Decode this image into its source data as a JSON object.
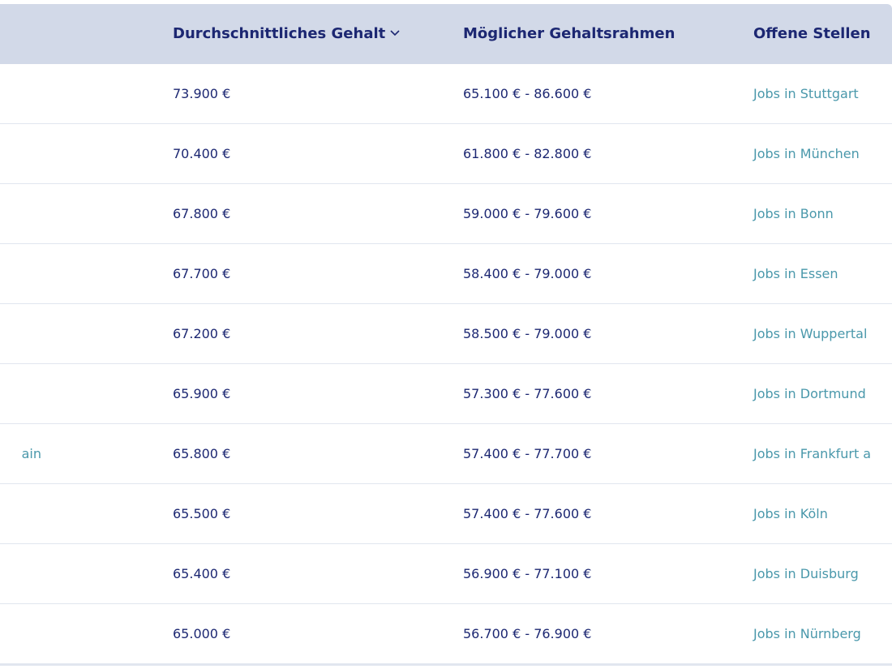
{
  "header": {
    "avg_salary_label": "Durchschnittliches Gehalt",
    "range_label": "Möglicher Gehaltsrahmen",
    "jobs_label": "Offene Stellen"
  },
  "rows": [
    {
      "city": "",
      "avg": "73.900 €",
      "range": "65.100 € - 86.600 €",
      "jobs": "Jobs in Stuttgart"
    },
    {
      "city": "",
      "avg": "70.400 €",
      "range": "61.800 € - 82.800 €",
      "jobs": "Jobs in München"
    },
    {
      "city": "",
      "avg": "67.800 €",
      "range": "59.000 € - 79.600 €",
      "jobs": "Jobs in Bonn"
    },
    {
      "city": "",
      "avg": "67.700 €",
      "range": "58.400 € - 79.000 €",
      "jobs": "Jobs in Essen"
    },
    {
      "city": "",
      "avg": "67.200 €",
      "range": "58.500 € - 79.000 €",
      "jobs": "Jobs in Wuppertal"
    },
    {
      "city": "",
      "avg": "65.900 €",
      "range": "57.300 € - 77.600 €",
      "jobs": "Jobs in Dortmund"
    },
    {
      "city": "ain",
      "avg": "65.800 €",
      "range": "57.400 € - 77.700 €",
      "jobs": "Jobs in Frankfurt a"
    },
    {
      "city": "",
      "avg": "65.500 €",
      "range": "57.400 € - 77.600 €",
      "jobs": "Jobs in Köln"
    },
    {
      "city": "",
      "avg": "65.400 €",
      "range": "56.900 € - 77.100 €",
      "jobs": "Jobs in Duisburg"
    },
    {
      "city": "",
      "avg": "65.000 €",
      "range": "56.700 € - 76.900 €",
      "jobs": "Jobs in Nürnberg"
    }
  ]
}
